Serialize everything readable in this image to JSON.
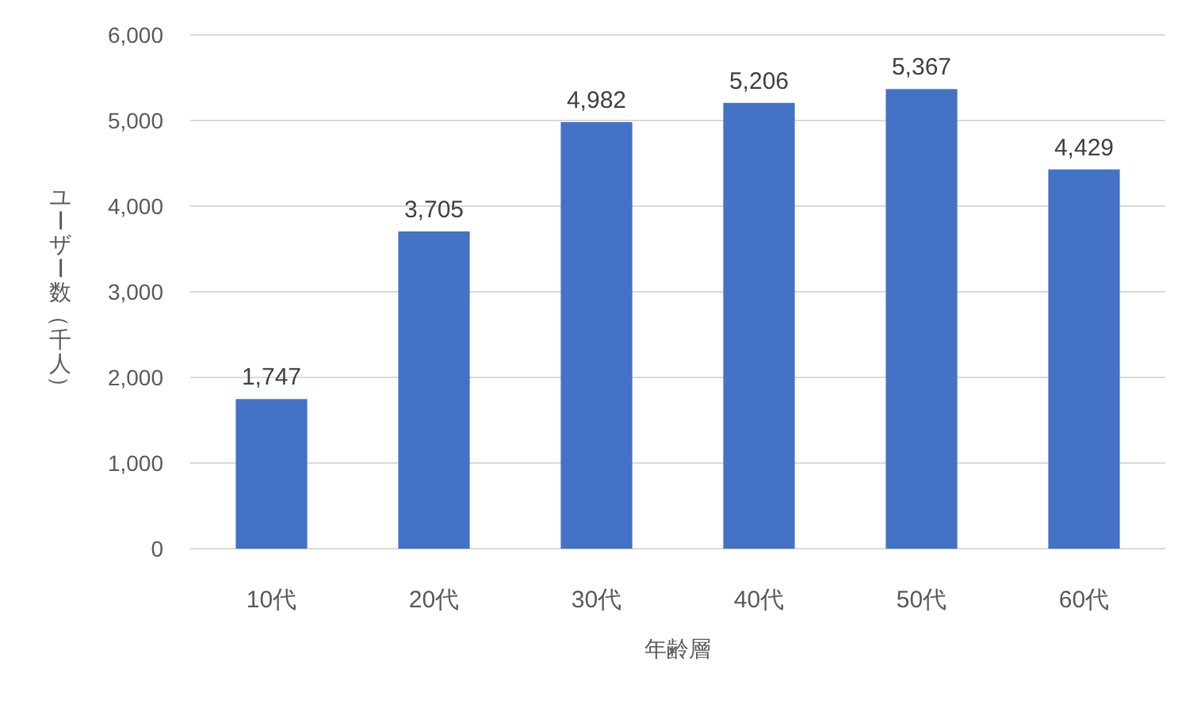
{
  "chart_data": {
    "type": "bar",
    "xlabel": "年齢層",
    "ylabel": "ユーザー数（千人）",
    "categories": [
      "10代",
      "20代",
      "30代",
      "40代",
      "50代",
      "60代"
    ],
    "values": [
      1747,
      3705,
      4982,
      5206,
      5367,
      4429
    ],
    "value_labels": [
      "1,747",
      "3,705",
      "4,982",
      "5,206",
      "5,367",
      "4,429"
    ],
    "color": "#4472c4",
    "ylim": [
      0,
      6000
    ],
    "yticks": [
      0,
      {
        "value": 1000,
        "label": "1,000"
      },
      {
        "value": 2000,
        "label": "2,000"
      },
      {
        "value": 3000,
        "label": "3,000"
      },
      {
        "value": 4000,
        "label": "4,000"
      },
      {
        "value": 5000,
        "label": "5,000"
      },
      {
        "value": 6000,
        "label": "6,000"
      }
    ],
    "grid": "y"
  }
}
